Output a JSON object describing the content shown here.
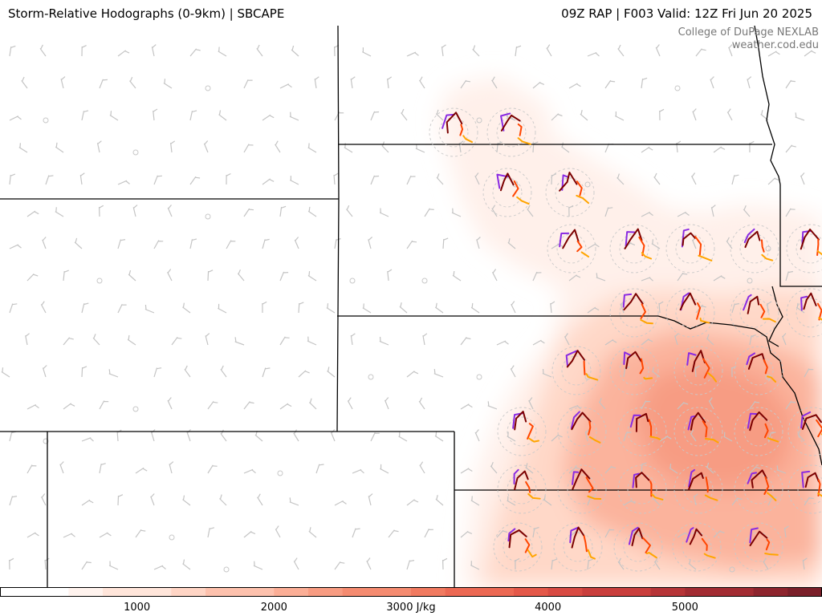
{
  "header": {
    "title_left": "Storm-Relative Hodographs (0-9km) | SBCAPE",
    "title_right": "09Z RAP | F003 Valid: 12Z Fri Jun 20 2025"
  },
  "credit": {
    "line1": "College of DuPage NEXLAB",
    "line2": "weather.cod.edu"
  },
  "colorbar": {
    "min": 0,
    "max": 6000,
    "step": 250,
    "ticks": [
      {
        "label": "1000",
        "value": 1000
      },
      {
        "label": "2000",
        "value": 2000
      },
      {
        "label": "3000 J/kg",
        "value": 3000
      },
      {
        "label": "4000",
        "value": 4000
      },
      {
        "label": "5000",
        "value": 5000
      }
    ],
    "colors": [
      "#ffffff",
      "#fff3ee",
      "#ffe5da",
      "#ffd5c5",
      "#fdc1ad",
      "#fbae96",
      "#f89c82",
      "#f58b70",
      "#f17a60",
      "#ec6853",
      "#e45849",
      "#d84a42",
      "#c93e3c",
      "#b63437",
      "#a22b32",
      "#8d242d",
      "#7a1f29"
    ]
  },
  "hodograph_colors": {
    "0-3km": "#7b0000",
    "3-6km": "#ff4500",
    "6-9km": "#ffa500",
    "storm-motion": "#8a2be2"
  }
}
